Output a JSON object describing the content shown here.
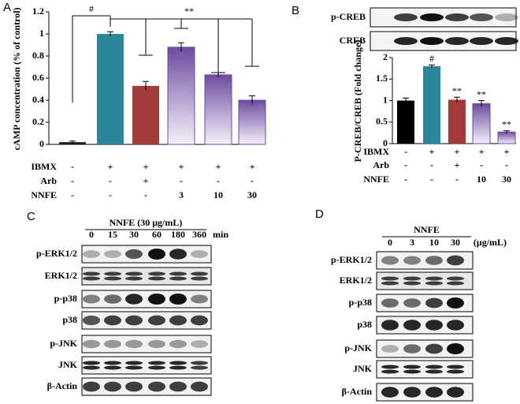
{
  "panel_labels": [
    "A",
    "B",
    "C",
    "D"
  ],
  "chart_data": [
    {
      "type": "bar",
      "y_label": "cAMP concentration (% of control)",
      "categories": [
        null,
        null,
        null,
        null,
        null,
        null
      ],
      "values": [
        0.02,
        1.0,
        0.53,
        0.88,
        0.63,
        0.4
      ],
      "errors": [
        0.01,
        0.02,
        0.04,
        0.04,
        0.02,
        0.04
      ],
      "colors": [
        "#1a1a1a",
        "#2b8799",
        "#a33a3a",
        "#6d4c9f",
        "#6d4c9f",
        "#6d4c9f"
      ],
      "gradient": [
        false,
        false,
        false,
        true,
        true,
        true
      ],
      "ylim": [
        0,
        1.2
      ],
      "yticks": [
        0,
        0.2,
        0.4,
        0.6,
        0.8,
        1,
        1.2
      ],
      "annotations": [
        "#",
        "**"
      ],
      "treatments": [
        {
          "name": "IBMX",
          "values": [
            "-",
            "+",
            "+",
            "+",
            "+",
            "+"
          ]
        },
        {
          "name": "Arb",
          "values": [
            "-",
            "-",
            "+",
            "-",
            "-",
            "-"
          ]
        },
        {
          "name": "NNFE",
          "values": [
            "-",
            "-",
            "-",
            "3",
            "10",
            "30"
          ]
        }
      ]
    },
    {
      "type": "bar",
      "y_label": "P-CREB/CREB (Fold change)",
      "categories": [
        null,
        null,
        null,
        null,
        null
      ],
      "values": [
        1.0,
        1.8,
        1.02,
        0.93,
        0.27
      ],
      "errors": [
        0.06,
        0.03,
        0.06,
        0.07,
        0.03
      ],
      "colors": [
        "#000000",
        "#2b8799",
        "#a33a3a",
        "#6d4c9f",
        "#6d4c9f"
      ],
      "gradient": [
        false,
        false,
        false,
        true,
        true
      ],
      "ylim": [
        0,
        2
      ],
      "yticks": [
        0,
        0.5,
        1,
        1.5,
        2
      ],
      "bar_annotations": [
        null,
        "#",
        "**",
        "**",
        "**"
      ],
      "blots": [
        "p-CREB",
        "CREB"
      ],
      "treatments": [
        {
          "name": "IBMX",
          "values": [
            "-",
            "+",
            "+",
            "+",
            "+"
          ]
        },
        {
          "name": "Arb",
          "values": [
            "-",
            "-",
            "+",
            "-",
            "-"
          ]
        },
        {
          "name": "NNFE",
          "values": [
            "-",
            "-",
            "-",
            "10",
            "30"
          ]
        }
      ]
    }
  ],
  "blot_c": {
    "header": "NNFE (30 μg/mL)",
    "lanes": [
      "0",
      "15",
      "30",
      "60",
      "180",
      "360"
    ],
    "unit": "min",
    "rows": [
      "p-ERK1/2",
      "ERK1/2",
      "p-p38",
      "p38",
      "p-JNK",
      "JNK",
      "β-Actin"
    ]
  },
  "blot_d": {
    "header": "NNFE",
    "lanes": [
      "0",
      "3",
      "10",
      "30"
    ],
    "unit": "(μg/mL)",
    "rows": [
      "p-ERK1/2",
      "ERK1/2",
      "p-p38",
      "p38",
      "p-JNK",
      "JNK",
      "β-Actin"
    ]
  }
}
